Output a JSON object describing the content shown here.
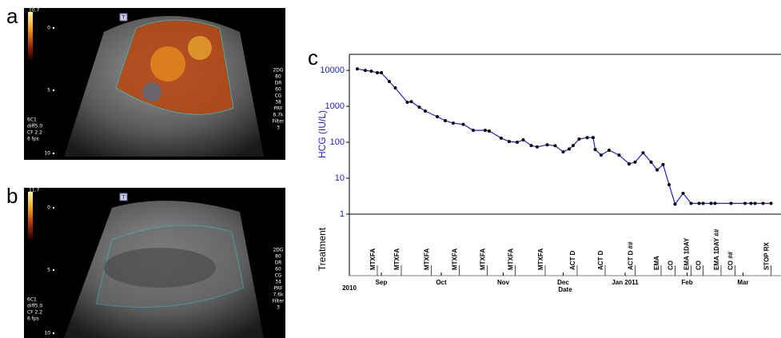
{
  "panels": [
    {
      "label": "a",
      "scale_max": "10.7",
      "depth_labels": [
        "0",
        "5",
        "10"
      ],
      "settings": [
        "2DG",
        "80",
        "DR",
        "60",
        "CG",
        "38",
        "PRF",
        "6.7k",
        "Filter",
        "3"
      ],
      "probe": [
        "6C1",
        "diff5.0",
        "CF 2.2",
        "6 fps"
      ],
      "marker": "T"
    },
    {
      "label": "b",
      "scale_max": "11.7",
      "depth_labels": [
        "0",
        "5",
        "10"
      ],
      "settings": [
        "2DG",
        "80",
        "DR",
        "60",
        "CG",
        "34",
        "PRF",
        "7.6k",
        "Filter",
        "3"
      ],
      "probe": [
        "6C1",
        "diff5.0",
        "CF 2.2",
        "6 fps"
      ],
      "marker": "T"
    }
  ],
  "chart_data": {
    "type": "line",
    "panel_label": "c",
    "ylabel": "HCG (IU/L)",
    "xlabel": "Date",
    "treatment_label": "Treatment",
    "x_start_label": "2010",
    "log_y": true,
    "color": "#1f1fd0",
    "marker_color": "#000000",
    "ylim": [
      1,
      28000
    ],
    "yticks": [
      1,
      10,
      100,
      1000,
      10000
    ],
    "xlim": [
      228,
      444
    ],
    "xticks": [
      {
        "value": 244,
        "label": "Sep"
      },
      {
        "value": 274,
        "label": "Oct"
      },
      {
        "value": 305,
        "label": "Nov"
      },
      {
        "value": 335,
        "label": "Dec"
      },
      {
        "value": 366,
        "label": "Jan 2011"
      },
      {
        "value": 397,
        "label": "Feb"
      },
      {
        "value": 425,
        "label": "Mar"
      }
    ],
    "x": [
      232,
      236,
      239,
      242,
      244,
      248,
      251,
      257,
      259,
      263,
      266,
      272,
      276,
      280,
      285,
      290,
      296,
      298,
      304,
      308,
      312,
      315,
      319,
      322,
      327,
      331,
      335,
      338,
      340,
      343,
      347,
      350,
      351,
      354,
      358,
      363,
      368,
      371,
      375,
      379,
      382,
      385,
      388,
      391,
      395,
      399,
      403,
      405,
      409,
      411,
      419,
      426,
      429,
      431,
      435,
      439
    ],
    "values": [
      11000,
      10000,
      9500,
      8600,
      8600,
      4900,
      3250,
      1300,
      1350,
      950,
      740,
      515,
      400,
      340,
      315,
      215,
      215,
      205,
      130,
      105,
      100,
      117,
      81,
      74,
      85,
      80,
      54,
      65,
      81,
      123,
      135,
      135,
      63,
      44,
      60,
      44,
      25,
      28,
      51,
      28,
      17,
      24,
      6.6,
      1.9,
      3.8,
      2,
      2,
      2,
      2,
      2,
      2,
      2,
      2,
      2,
      2,
      2
    ],
    "treatments": [
      {
        "x": 240,
        "label": "MTXFA"
      },
      {
        "x": 252,
        "label": "MTXFA"
      },
      {
        "x": 267,
        "label": "MTXFA"
      },
      {
        "x": 281,
        "label": "MTXFA"
      },
      {
        "x": 295,
        "label": "MTXFA"
      },
      {
        "x": 309,
        "label": "MTXFA"
      },
      {
        "x": 324,
        "label": "MTXFA"
      },
      {
        "x": 340,
        "label": "ACT D"
      },
      {
        "x": 354,
        "label": "ACT D"
      },
      {
        "x": 369,
        "label": "ACT D ##"
      },
      {
        "x": 382,
        "label": "EMA"
      },
      {
        "x": 389,
        "label": "CO"
      },
      {
        "x": 397,
        "label": "EMA 1DAY"
      },
      {
        "x": 403,
        "label": "CO"
      },
      {
        "x": 412,
        "label": "EMA 1DAY ##"
      },
      {
        "x": 419,
        "label": "CO ##"
      },
      {
        "x": 437,
        "label": "STOP RX"
      }
    ]
  }
}
